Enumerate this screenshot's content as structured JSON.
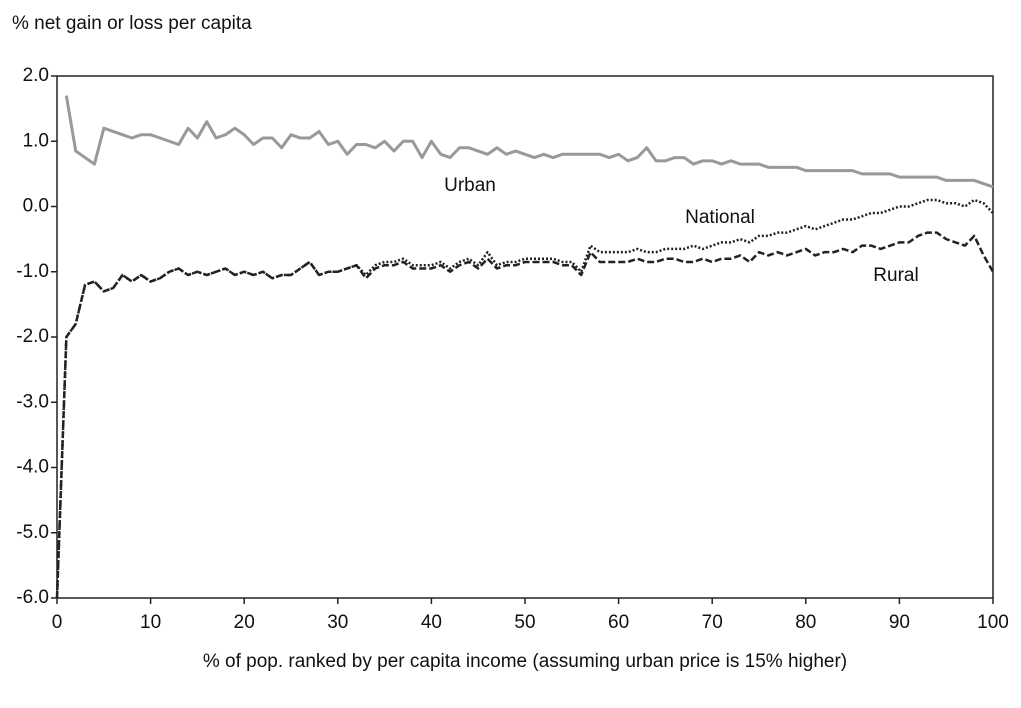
{
  "chart_data": {
    "type": "line",
    "y_axis_title": "% net gain or loss per capita",
    "x_axis_title": "% of pop. ranked by per capita income (assuming urban price is 15% higher)",
    "x": [
      0,
      1,
      2,
      3,
      4,
      5,
      6,
      7,
      8,
      9,
      10,
      11,
      12,
      13,
      14,
      15,
      16,
      17,
      18,
      19,
      20,
      21,
      22,
      23,
      24,
      25,
      26,
      27,
      28,
      29,
      30,
      31,
      32,
      33,
      34,
      35,
      36,
      37,
      38,
      39,
      40,
      41,
      42,
      43,
      44,
      45,
      46,
      47,
      48,
      49,
      50,
      51,
      52,
      53,
      54,
      55,
      56,
      57,
      58,
      59,
      60,
      61,
      62,
      63,
      64,
      65,
      66,
      67,
      68,
      69,
      70,
      71,
      72,
      73,
      74,
      75,
      76,
      77,
      78,
      79,
      80,
      81,
      82,
      83,
      84,
      85,
      86,
      87,
      88,
      89,
      90,
      91,
      92,
      93,
      94,
      95,
      96,
      97,
      98,
      99,
      100
    ],
    "series": [
      {
        "name": "Urban",
        "color": "#999999",
        "style": "solid",
        "values": [
          null,
          1.7,
          0.85,
          0.75,
          0.65,
          1.2,
          1.15,
          1.1,
          1.05,
          1.1,
          1.1,
          1.05,
          1.0,
          0.95,
          1.2,
          1.05,
          1.3,
          1.05,
          1.1,
          1.2,
          1.1,
          0.95,
          1.05,
          1.05,
          0.9,
          1.1,
          1.05,
          1.05,
          1.15,
          0.95,
          1.0,
          0.8,
          0.95,
          0.95,
          0.9,
          1.0,
          0.85,
          1.0,
          1.0,
          0.75,
          1.0,
          0.8,
          0.75,
          0.9,
          0.9,
          0.85,
          0.8,
          0.9,
          0.8,
          0.85,
          0.8,
          0.75,
          0.8,
          0.75,
          0.8,
          0.8,
          0.8,
          0.8,
          0.8,
          0.75,
          0.8,
          0.7,
          0.75,
          0.9,
          0.7,
          0.7,
          0.75,
          0.75,
          0.65,
          0.7,
          0.7,
          0.65,
          0.7,
          0.65,
          0.65,
          0.65,
          0.6,
          0.6,
          0.6,
          0.6,
          0.55,
          0.55,
          0.55,
          0.55,
          0.55,
          0.55,
          0.5,
          0.5,
          0.5,
          0.5,
          0.45,
          0.45,
          0.45,
          0.45,
          0.45,
          0.4,
          0.4,
          0.4,
          0.4,
          0.35,
          0.3
        ]
      },
      {
        "name": "National",
        "color": "#222222",
        "style": "dotted",
        "values": [
          -6.0,
          -2.0,
          -1.8,
          -1.2,
          -1.15,
          -1.3,
          -1.25,
          -1.05,
          -1.15,
          -1.05,
          -1.15,
          -1.1,
          -1.0,
          -0.95,
          -1.05,
          -1.0,
          -1.05,
          -1.0,
          -0.95,
          -1.05,
          -1.0,
          -1.05,
          -1.0,
          -1.1,
          -1.05,
          -1.05,
          -0.95,
          -0.85,
          -1.05,
          -1.0,
          -1.0,
          -0.95,
          -0.9,
          -1.05,
          -0.9,
          -0.85,
          -0.85,
          -0.8,
          -0.9,
          -0.9,
          -0.9,
          -0.85,
          -0.95,
          -0.85,
          -0.8,
          -0.9,
          -0.7,
          -0.9,
          -0.85,
          -0.85,
          -0.8,
          -0.8,
          -0.8,
          -0.8,
          -0.85,
          -0.85,
          -1.0,
          -0.6,
          -0.7,
          -0.7,
          -0.7,
          -0.7,
          -0.65,
          -0.7,
          -0.7,
          -0.65,
          -0.65,
          -0.65,
          -0.6,
          -0.65,
          -0.6,
          -0.55,
          -0.55,
          -0.5,
          -0.55,
          -0.45,
          -0.45,
          -0.4,
          -0.4,
          -0.35,
          -0.3,
          -0.35,
          -0.3,
          -0.25,
          -0.2,
          -0.2,
          -0.15,
          -0.1,
          -0.1,
          -0.05,
          0.0,
          0.0,
          0.05,
          0.1,
          0.1,
          0.05,
          0.05,
          0.0,
          0.1,
          0.05,
          -0.1
        ]
      },
      {
        "name": "Rural",
        "color": "#222222",
        "style": "dashed",
        "values": [
          -6.0,
          -2.0,
          -1.8,
          -1.2,
          -1.15,
          -1.3,
          -1.25,
          -1.05,
          -1.15,
          -1.05,
          -1.15,
          -1.1,
          -1.0,
          -0.95,
          -1.05,
          -1.0,
          -1.05,
          -1.0,
          -0.95,
          -1.05,
          -1.0,
          -1.05,
          -1.0,
          -1.1,
          -1.05,
          -1.05,
          -0.95,
          -0.85,
          -1.05,
          -1.0,
          -1.0,
          -0.95,
          -0.9,
          -1.1,
          -0.95,
          -0.9,
          -0.9,
          -0.85,
          -0.95,
          -0.95,
          -0.95,
          -0.9,
          -1.0,
          -0.9,
          -0.85,
          -0.95,
          -0.8,
          -0.95,
          -0.9,
          -0.9,
          -0.85,
          -0.85,
          -0.85,
          -0.85,
          -0.9,
          -0.9,
          -1.05,
          -0.7,
          -0.85,
          -0.85,
          -0.85,
          -0.85,
          -0.8,
          -0.85,
          -0.85,
          -0.8,
          -0.8,
          -0.85,
          -0.85,
          -0.8,
          -0.85,
          -0.8,
          -0.8,
          -0.75,
          -0.85,
          -0.7,
          -0.75,
          -0.7,
          -0.75,
          -0.7,
          -0.65,
          -0.75,
          -0.7,
          -0.7,
          -0.65,
          -0.7,
          -0.6,
          -0.6,
          -0.65,
          -0.6,
          -0.55,
          -0.55,
          -0.45,
          -0.4,
          -0.4,
          -0.5,
          -0.55,
          -0.6,
          -0.45,
          -0.75,
          -1.0
        ]
      }
    ],
    "xlim": [
      0,
      100
    ],
    "xticks": [
      0,
      10,
      20,
      30,
      40,
      50,
      60,
      70,
      80,
      90,
      100
    ],
    "ylim": [
      -6,
      2
    ],
    "yticks": [
      {
        "value": 2,
        "label": "2.0"
      },
      {
        "value": 1,
        "label": "1.0"
      },
      {
        "value": 0,
        "label": "0.0"
      },
      {
        "value": -1,
        "label": "-1.0"
      },
      {
        "value": -2,
        "label": "-2.0"
      },
      {
        "value": -3,
        "label": "-3.0"
      },
      {
        "value": -4,
        "label": "-4.0"
      },
      {
        "value": -5,
        "label": "-5.0"
      },
      {
        "value": -6,
        "label": "-6.0"
      }
    ]
  }
}
